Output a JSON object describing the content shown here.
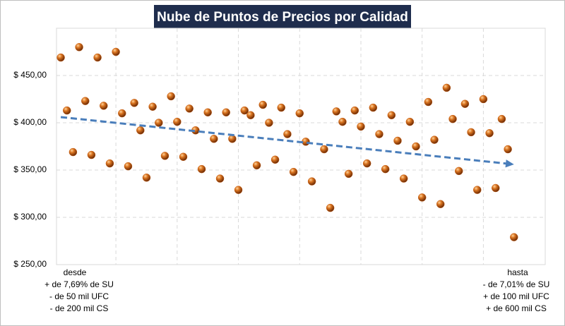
{
  "chart_data": {
    "type": "scatter",
    "title": "Nube de Puntos de Precios por Calidad",
    "x": [
      1,
      2,
      3,
      4,
      5,
      6,
      7,
      8,
      9,
      10,
      11,
      12,
      13,
      14,
      15,
      16,
      17,
      18,
      19,
      20,
      21,
      22,
      23,
      24,
      25,
      26,
      27,
      28,
      29,
      30,
      31,
      32,
      33,
      34,
      35,
      36,
      37,
      38,
      39,
      40,
      41,
      42,
      44,
      45,
      46,
      47,
      48,
      49,
      50,
      51,
      52,
      53,
      54,
      55,
      56,
      57,
      58,
      59,
      60,
      61,
      62,
      63,
      64,
      65,
      66,
      67,
      68,
      69,
      70,
      71,
      72,
      73,
      74,
      75
    ],
    "y": [
      469,
      413,
      369,
      480,
      423,
      366,
      469,
      418,
      357,
      475,
      410,
      354,
      421,
      392,
      342,
      417,
      400,
      365,
      428,
      401,
      364,
      415,
      392,
      351,
      411,
      383,
      341,
      411,
      383,
      329,
      413,
      408,
      355,
      419,
      400,
      361,
      416,
      388,
      348,
      410,
      380,
      338,
      372,
      310,
      412,
      401,
      346,
      413,
      396,
      357,
      416,
      388,
      351,
      408,
      381,
      341,
      401,
      375,
      321,
      422,
      382,
      314,
      437,
      404,
      349,
      420,
      390,
      329,
      425,
      389,
      331,
      404,
      372,
      279
    ],
    "color": "#c8621a",
    "trendline": {
      "x": [
        1,
        75
      ],
      "y": [
        406,
        356
      ],
      "color": "#4a7ebb"
    },
    "xlim": [
      0.3,
      80.1
    ],
    "xticks": [
      10,
      20,
      30,
      40,
      50,
      60,
      70
    ],
    "ylim": [
      250,
      500
    ],
    "yticks": [
      {
        "value": 250,
        "label": "$ 250,00"
      },
      {
        "value": 300,
        "label": "$ 300,00"
      },
      {
        "value": 350,
        "label": "$ 350,00"
      },
      {
        "value": 400,
        "label": "$ 400,00"
      },
      {
        "value": 450,
        "label": "$ 450,00"
      }
    ],
    "grid": true,
    "annotations": {
      "left": [
        "desde",
        "+ de 7,69% de SU",
        "- de 50 mil UFC",
        "- de 200 mil CS"
      ],
      "right": [
        "hasta",
        "- de 7,01% de SU",
        "+ de 100 mil UFC",
        "+ de 600 mil CS"
      ]
    }
  }
}
